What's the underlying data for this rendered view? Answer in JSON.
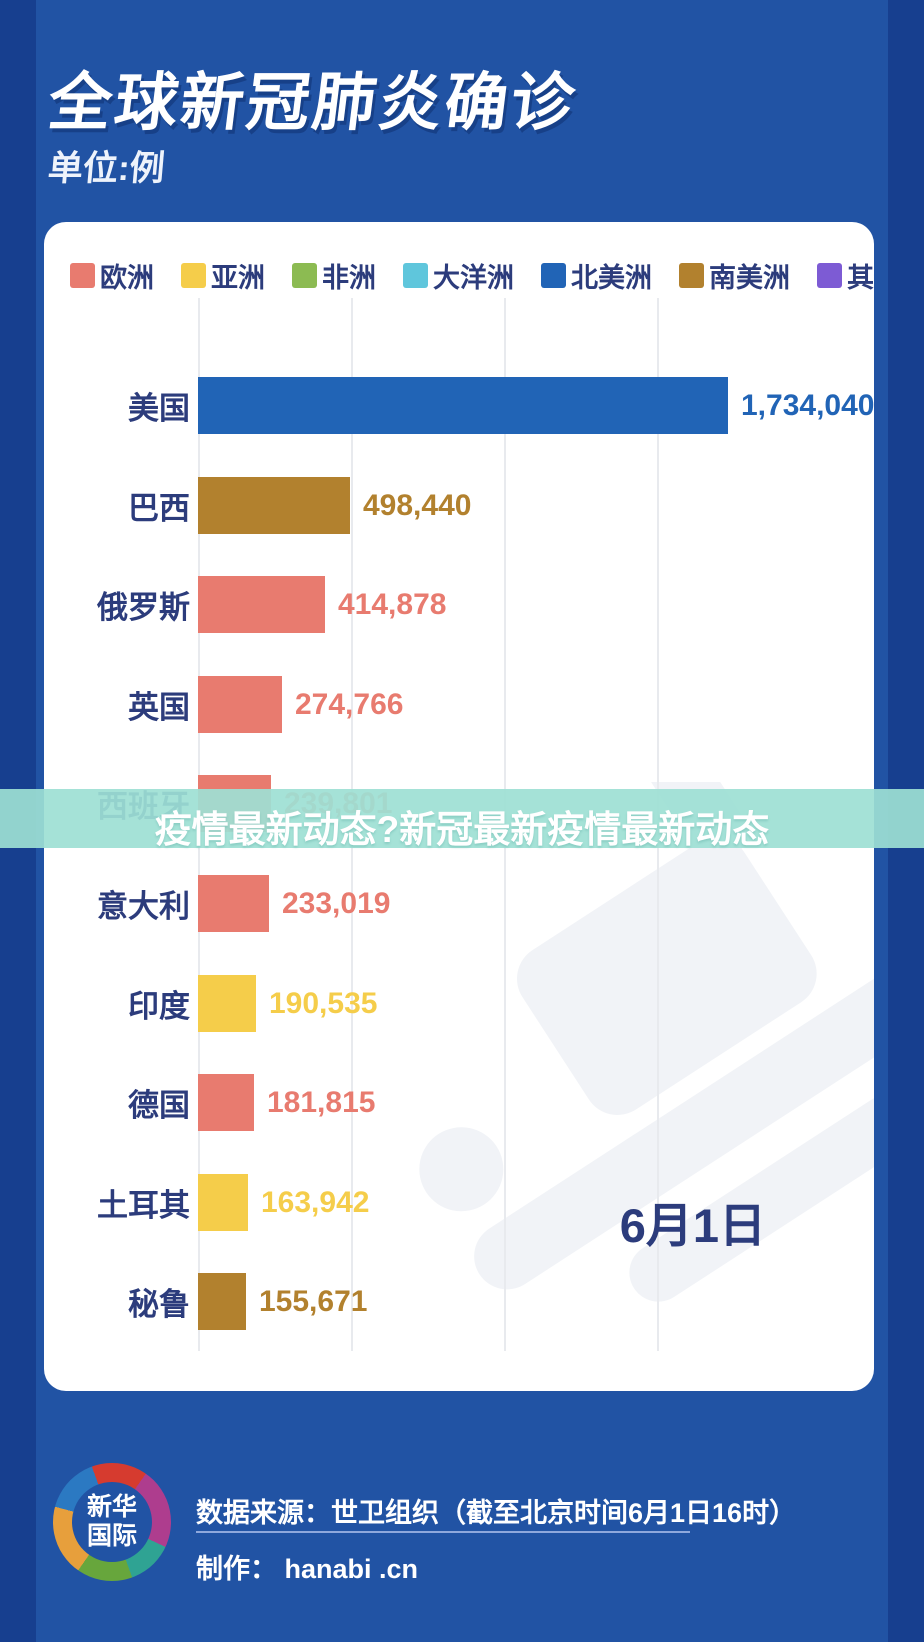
{
  "page": {
    "title": "全球新冠肺炎确诊",
    "unit_label": "单位:例"
  },
  "legend": [
    {
      "label": "欧洲",
      "color": "#e87b6f"
    },
    {
      "label": "亚洲",
      "color": "#f5cd4a"
    },
    {
      "label": "非洲",
      "color": "#8cbb52"
    },
    {
      "label": "大洋洲",
      "color": "#5fc6dc"
    },
    {
      "label": "北美洲",
      "color": "#2164b6"
    },
    {
      "label": "南美洲",
      "color": "#b2812e"
    },
    {
      "label": "其他",
      "color": "#7d5bd4"
    }
  ],
  "chart_data": {
    "type": "bar",
    "orientation": "horizontal",
    "title": "全球新冠肺炎确诊",
    "unit": "例",
    "date_label": "6月1日",
    "categories": [
      "美国",
      "巴西",
      "俄罗斯",
      "英国",
      "西班牙",
      "意大利",
      "印度",
      "德国",
      "土耳其",
      "秘鲁"
    ],
    "values": [
      1734040,
      498440,
      414878,
      274766,
      239801,
      233019,
      190535,
      181815,
      163942,
      155671
    ],
    "value_labels": [
      "1,734,040",
      "498,440",
      "414,878",
      "274,766",
      "239,801",
      "233,019",
      "190,535",
      "181,815",
      "163,942",
      "155,671"
    ],
    "continents": [
      "北美洲",
      "南美洲",
      "欧洲",
      "欧洲",
      "欧洲",
      "欧洲",
      "亚洲",
      "欧洲",
      "亚洲",
      "南美洲"
    ],
    "bar_colors": [
      "#2164b6",
      "#b2812e",
      "#e87b6f",
      "#e87b6f",
      "#e87b6f",
      "#e87b6f",
      "#f5cd4a",
      "#e87b6f",
      "#f5cd4a",
      "#b2812e"
    ],
    "xlim": [
      0,
      1734040
    ],
    "gridline_interval": 500000,
    "grid": true,
    "legend_position": "top"
  },
  "overlay_banner": {
    "text": "疫情最新动态?新冠最新疫情最新动态",
    "background": "#9de0d4",
    "text_color": "#ffffff"
  },
  "footer": {
    "logo_text_line1": "新华",
    "logo_text_line2": "国际",
    "source_line": "数据来源：世卫组织（截至北京时间6月1日16时）",
    "credit_line": "制作： hanabi .cn"
  }
}
